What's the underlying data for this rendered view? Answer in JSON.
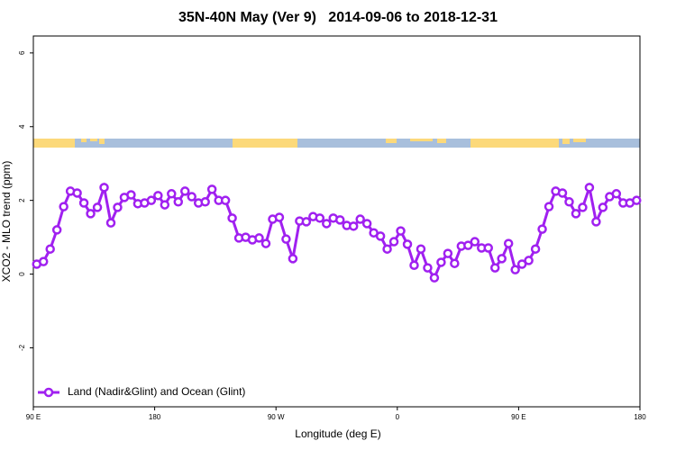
{
  "chart_data": {
    "type": "line",
    "title": "35N-40N May (Ver 9)   2014-09-06 to 2018-12-31",
    "x_label": "Longitude (deg E)",
    "y_label": "XCO2 - MLO trend (ppm)",
    "xlim": [
      90,
      540
    ],
    "ylim": [
      -3.6,
      6.46
    ],
    "xticks": [
      {
        "value": 90,
        "label": "90 E"
      },
      180,
      {
        "value": 270,
        "label": "90 W"
      },
      {
        "value": 360,
        "label": "0"
      },
      {
        "value": 450,
        "label": "90 E"
      },
      {
        "value": 540,
        "label": "180"
      }
    ],
    "yticks": [
      -2,
      0,
      2,
      4,
      6
    ],
    "legend": "bottomleft",
    "x": [
      92.5,
      97.5,
      102.5,
      107.5,
      112.5,
      117.5,
      122.5,
      127.5,
      132.5,
      137.5,
      142.5,
      147.5,
      152.5,
      157.5,
      162.5,
      167.5,
      172.5,
      177.5,
      182.5,
      187.5,
      192.5,
      197.5,
      202.5,
      207.5,
      212.5,
      217.5,
      222.5,
      227.5,
      232.5,
      237.5,
      242.5,
      247.5,
      252.5,
      257.5,
      262.5,
      267.5,
      272.5,
      277.5,
      282.5,
      287.5,
      292.5,
      297.5,
      302.5,
      307.5,
      312.5,
      317.5,
      322.5,
      327.5,
      332.5,
      337.5,
      342.5,
      347.5,
      352.5,
      357.5,
      362.5,
      367.5,
      372.5,
      377.5,
      382.5,
      387.5,
      392.5,
      397.5,
      402.5,
      407.5,
      412.5,
      417.5,
      422.5,
      427.5,
      432.5,
      437.5,
      442.5,
      447.5,
      452.5,
      457.5,
      462.5,
      467.5,
      472.5,
      477.5,
      482.5,
      487.5,
      492.5,
      497.5,
      502.5,
      507.5,
      512.5,
      517.5,
      522.5,
      527.5,
      532.5,
      537.5
    ],
    "series": [
      {
        "name": "Land (Nadir&Glint) and Ocean (Glint)",
        "color": "#a020f0",
        "values": [
          0.27,
          0.34,
          0.68,
          1.2,
          1.83,
          2.25,
          2.2,
          1.93,
          1.64,
          1.81,
          2.35,
          1.39,
          1.81,
          2.08,
          2.15,
          1.91,
          1.93,
          2.0,
          2.13,
          1.88,
          2.18,
          1.96,
          2.25,
          2.1,
          1.93,
          1.96,
          2.3,
          2.0,
          2.0,
          1.52,
          0.98,
          1.0,
          0.93,
          0.98,
          0.83,
          1.49,
          1.54,
          0.95,
          0.42,
          1.44,
          1.42,
          1.56,
          1.52,
          1.37,
          1.52,
          1.47,
          1.32,
          1.3,
          1.49,
          1.37,
          1.12,
          1.03,
          0.68,
          0.88,
          1.17,
          0.81,
          0.24,
          0.68,
          0.17,
          -0.1,
          0.32,
          0.56,
          0.29,
          0.76,
          0.78,
          0.88,
          0.71,
          0.71,
          0.17,
          0.42,
          0.83,
          0.12,
          0.27,
          0.37,
          0.68,
          1.22,
          1.83,
          2.25,
          2.2,
          1.96,
          1.64,
          1.81,
          2.35,
          1.42,
          1.81,
          2.1,
          2.18,
          1.93,
          1.93,
          2.0
        ]
      }
    ]
  }
}
